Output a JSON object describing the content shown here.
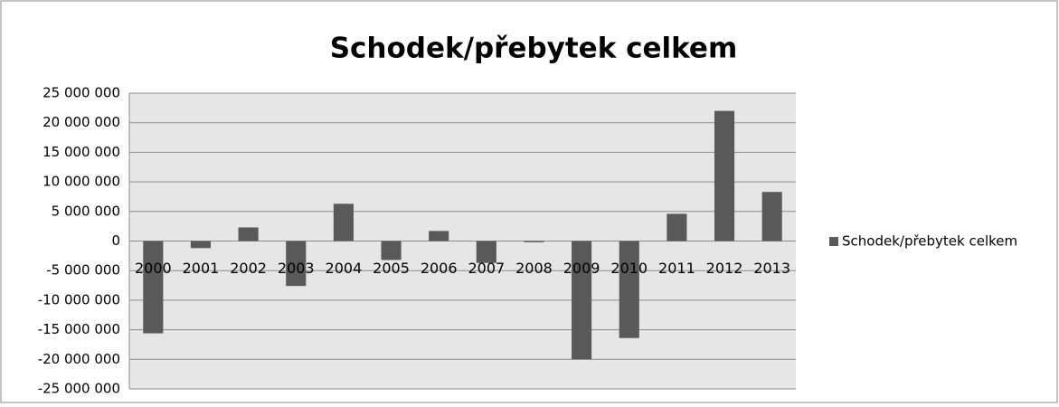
{
  "chart_data": {
    "type": "bar",
    "title": "Schodek/přebytek celkem",
    "categories": [
      "2000",
      "2001",
      "2002",
      "2003",
      "2004",
      "2005",
      "2006",
      "2007",
      "2008",
      "2009",
      "2010",
      "2011",
      "2012",
      "2013"
    ],
    "series": [
      {
        "name": "Schodek/přebytek celkem",
        "color": "#595959",
        "values": [
          -15600000,
          -1200000,
          2300000,
          -7600000,
          6300000,
          -3200000,
          1700000,
          -3700000,
          -200000,
          -20000000,
          -16400000,
          4600000,
          22000000,
          8300000
        ]
      }
    ],
    "ylim": [
      -25000000,
      25000000
    ],
    "yticks": [
      {
        "value": -25000000,
        "label": "-25 000 000"
      },
      {
        "value": -20000000,
        "label": "-20 000 000"
      },
      {
        "value": -15000000,
        "label": "-15 000 000"
      },
      {
        "value": -10000000,
        "label": "-10 000 000"
      },
      {
        "value": -5000000,
        "label": "-5 000 000"
      },
      0,
      {
        "value": 5000000,
        "label": "5 000 000"
      },
      {
        "value": 10000000,
        "label": "10 000 000"
      },
      {
        "value": 15000000,
        "label": "15 000 000"
      },
      {
        "value": 20000000,
        "label": "20 000 000"
      },
      {
        "value": 25000000,
        "label": "25 000 000"
      }
    ],
    "grid": true,
    "legend": "right"
  }
}
